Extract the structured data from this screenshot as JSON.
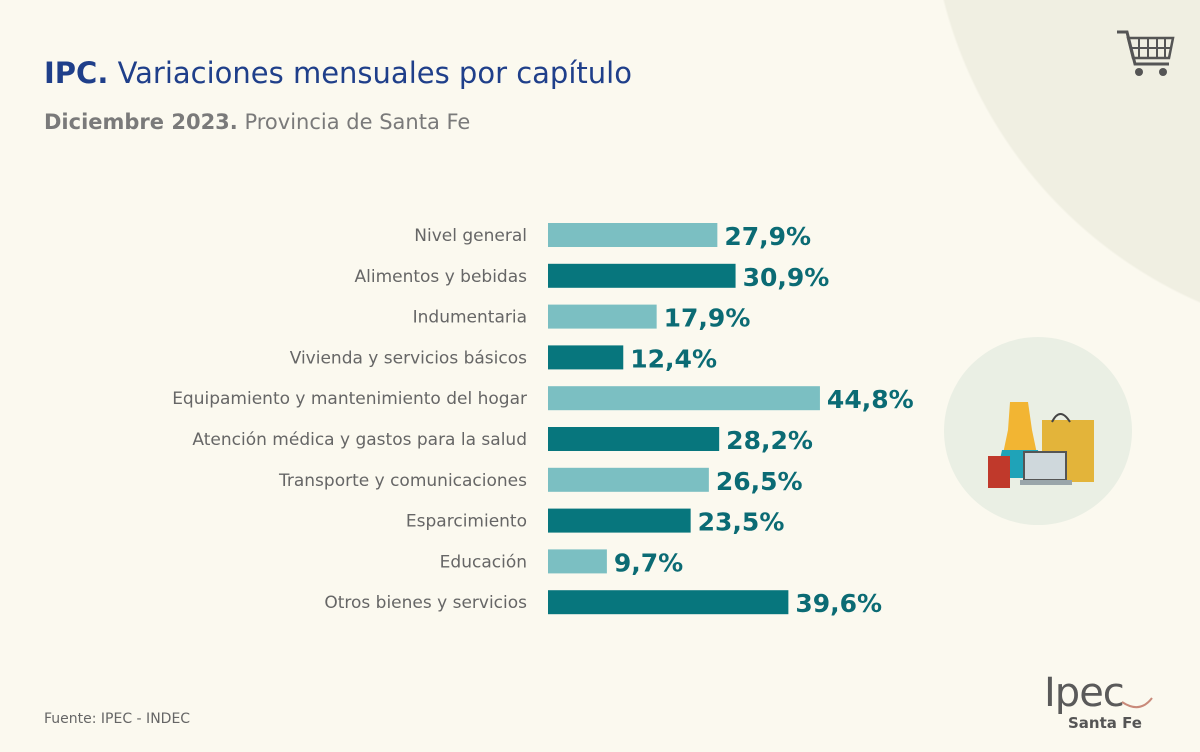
{
  "title_bold": "IPC.",
  "title_rest": "Variaciones mensuales por capítulo",
  "subtitle_bold": "Diciembre 2023.",
  "subtitle_rest": "Provincia de Santa Fe",
  "source": "Fuente: IPEC - INDEC",
  "logo": {
    "text": "Ipec",
    "sub": "Santa Fe"
  },
  "colors": {
    "light": "#7bbfc2",
    "dark": "#07767d",
    "label": "#0b6b74",
    "text": "#666666"
  },
  "icons": [
    "shopping-cart-icon",
    "shopping-illustration-icon"
  ],
  "chart_data": {
    "type": "bar",
    "orientation": "horizontal",
    "categories": [
      "Nivel general",
      "Alimentos y bebidas",
      "Indumentaria",
      "Vivienda y servicios básicos",
      "Equipamiento y mantenimiento del hogar",
      "Atención médica y gastos para la salud",
      "Transporte y comunicaciones",
      "Esparcimiento",
      "Educación",
      "Otros bienes y servicios"
    ],
    "values": [
      27.9,
      30.9,
      17.9,
      12.4,
      44.8,
      28.2,
      26.5,
      23.5,
      9.7,
      39.6
    ],
    "data_labels": [
      "27,9%",
      "30,9%",
      "17,9%",
      "12,4%",
      "44,8%",
      "28,2%",
      "26,5%",
      "23,5%",
      "9,7%",
      "39,6%"
    ],
    "bar_colors": [
      "light",
      "dark",
      "light",
      "dark",
      "light",
      "dark",
      "light",
      "dark",
      "light",
      "dark"
    ],
    "grid": false,
    "axes_visible": false
  }
}
